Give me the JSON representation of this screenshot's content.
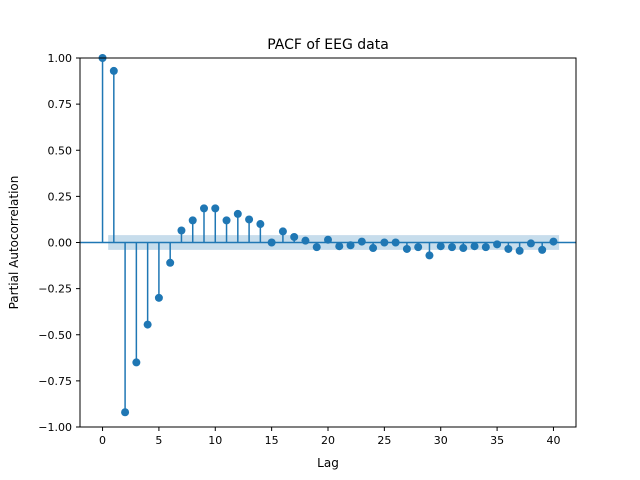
{
  "chart_data": {
    "type": "stem",
    "title": "PACF of EEG data",
    "xlabel": "Lag",
    "ylabel": "Partial Autocorrelation",
    "xlim": [
      -2.0,
      42.0
    ],
    "ylim": [
      -1.0,
      1.0
    ],
    "x_ticks": [
      0,
      5,
      10,
      15,
      20,
      25,
      30,
      35,
      40
    ],
    "x_tick_labels": [
      "0",
      "5",
      "10",
      "15",
      "20",
      "25",
      "30",
      "35",
      "40"
    ],
    "y_ticks": [
      -1.0,
      -0.75,
      -0.5,
      -0.25,
      0.0,
      0.25,
      0.5,
      0.75,
      1.0
    ],
    "y_tick_labels": [
      "−1.00",
      "−0.75",
      "−0.50",
      "−0.25",
      "0.00",
      "0.25",
      "0.50",
      "0.75",
      "1.00"
    ],
    "grid": false,
    "confidence_band": [
      -0.04,
      0.04
    ],
    "colors": {
      "stem": "#1f77b4",
      "band": "#1f77b4"
    },
    "series": [
      {
        "x": [
          0,
          1,
          2,
          3,
          4,
          5,
          6,
          7,
          8,
          9,
          10,
          11,
          12,
          13,
          14,
          15,
          16,
          17,
          18,
          19,
          20,
          21,
          22,
          23,
          24,
          25,
          26,
          27,
          28,
          29,
          30,
          31,
          32,
          33,
          34,
          35,
          36,
          37,
          38,
          39,
          40
        ],
        "values": [
          1.0,
          0.93,
          -0.92,
          -0.65,
          -0.445,
          -0.3,
          -0.11,
          0.065,
          0.12,
          0.185,
          0.185,
          0.12,
          0.155,
          0.125,
          0.1,
          0.0,
          0.06,
          0.03,
          0.01,
          -0.025,
          0.015,
          -0.02,
          -0.015,
          0.005,
          -0.03,
          0.0,
          0.0,
          -0.035,
          -0.025,
          -0.07,
          -0.02,
          -0.025,
          -0.03,
          -0.02,
          -0.025,
          -0.01,
          -0.035,
          -0.045,
          -0.005,
          -0.04,
          0.005
        ]
      }
    ]
  }
}
